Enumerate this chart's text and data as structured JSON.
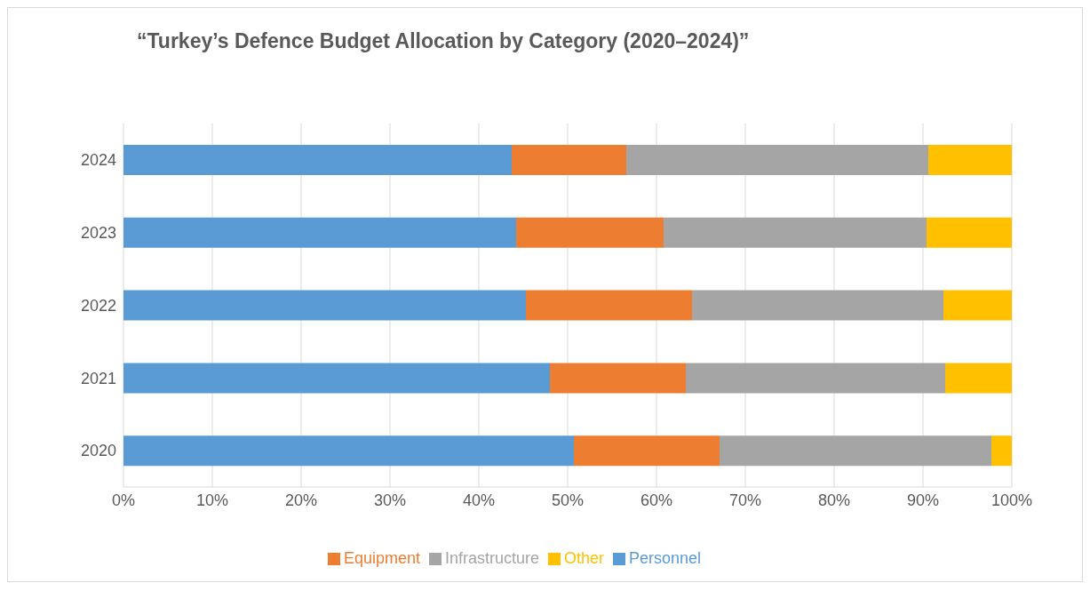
{
  "chart_data": {
    "type": "bar",
    "orientation": "horizontal",
    "stacked": true,
    "title": "“Turkey’s Defence Budget Allocation by Category (2020–2024)”",
    "categories": [
      "2024",
      "2023",
      "2022",
      "2021",
      "2020"
    ],
    "series": [
      {
        "name": "Personnel",
        "color": "#5b9bd5",
        "values": [
          43.7,
          44.2,
          45.3,
          48.0,
          50.7
        ]
      },
      {
        "name": "Equipment",
        "color": "#ed7d31",
        "values": [
          12.9,
          16.6,
          18.7,
          15.3,
          16.4
        ]
      },
      {
        "name": "Infrastructure",
        "color": "#a5a5a5",
        "values": [
          34.0,
          29.6,
          28.3,
          29.2,
          30.6
        ]
      },
      {
        "name": "Other",
        "color": "#ffc000",
        "values": [
          9.4,
          9.6,
          7.7,
          7.5,
          2.3
        ]
      }
    ],
    "xlim": [
      0,
      100
    ],
    "xticks": [
      {
        "value": 0,
        "label": "0%"
      },
      {
        "value": 10,
        "label": "10%"
      },
      {
        "value": 20,
        "label": "20%"
      },
      {
        "value": 30,
        "label": "30%"
      },
      {
        "value": 40,
        "label": "40%"
      },
      {
        "value": 50,
        "label": "50%"
      },
      {
        "value": 60,
        "label": "60%"
      },
      {
        "value": 70,
        "label": "70%"
      },
      {
        "value": 80,
        "label": "80%"
      },
      {
        "value": 90,
        "label": "90%"
      },
      {
        "value": 100,
        "label": "100%"
      }
    ],
    "grid": "x",
    "legend": "bottom"
  }
}
